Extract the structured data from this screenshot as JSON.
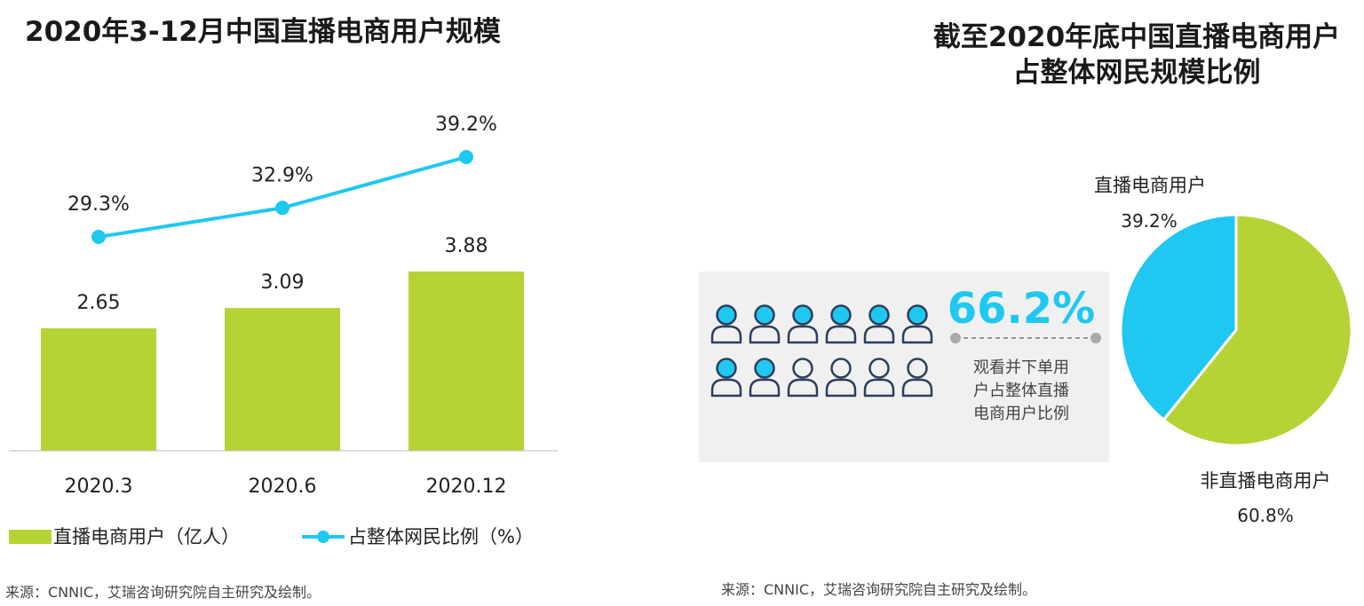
{
  "left_chart": {
    "title": "2020年3-12月中国直播电商用户规模",
    "source": "来源：CNNIC，艾瑞咨询研究院自主研究及绘制。",
    "legend": {
      "bar_label": "直播电商用户（亿人）",
      "line_label": "占整体网民比例（%）"
    }
  },
  "right_chart": {
    "title_line1": "截至2020年底中国直播电商用户",
    "title_line2": "占整体网民规模比例",
    "source": "来源：CNNIC，艾瑞咨询研究院自主研究及绘制。",
    "infographic": {
      "big_value": "66.2%",
      "description_lines": [
        "观看并下单用",
        "户占整体直播",
        "电商用户比例"
      ],
      "filled_icons": 8,
      "total_icons": 12
    }
  },
  "colors": {
    "bar": "#b5d334",
    "line": "#1ec8f0",
    "pie_blue": "#20c7f0",
    "pie_green": "#b5d334",
    "panel": "#f0f0f0",
    "big_value": "#1ec8f0"
  },
  "chart_data": [
    {
      "type": "bar",
      "categories": [
        "2020.3",
        "2020.6",
        "2020.12"
      ],
      "series": [
        {
          "name": "直播电商用户（亿人）",
          "type": "bar",
          "values": [
            2.65,
            3.09,
            3.88
          ],
          "labels": [
            "2.65",
            "3.09",
            "3.88"
          ]
        },
        {
          "name": "占整体网民比例（%）",
          "type": "line",
          "values": [
            29.3,
            32.9,
            39.2
          ],
          "labels": [
            "29.3%",
            "32.9%",
            "39.2%"
          ]
        }
      ],
      "legend_position": "bottom"
    },
    {
      "type": "pie",
      "slices": [
        {
          "label": "直播电商用户",
          "value": 39.2,
          "value_label": "39.2%"
        },
        {
          "label": "非直播电商用户",
          "value": 60.8,
          "value_label": "60.8%"
        }
      ]
    }
  ]
}
